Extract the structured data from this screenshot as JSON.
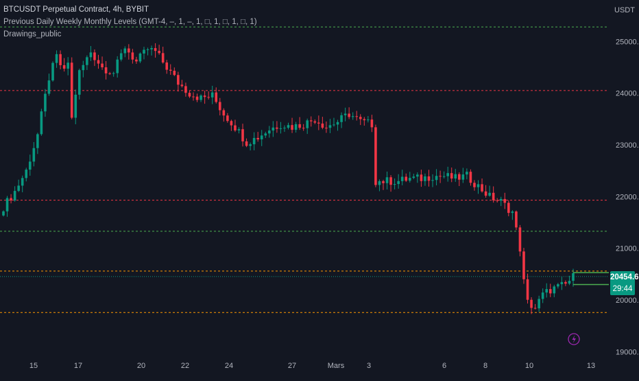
{
  "legend": {
    "title": "BTCUSDT Perpetual Contract, 4h, BYBIT",
    "indicator": "Previous Daily Weekly Monthly Levels (GMT-4, –, 1, –, 1, □, 1, □, 1, □, 1)",
    "drawings": "Drawings_public"
  },
  "axis": {
    "currency": "USDT"
  },
  "price_tag": {
    "last": "20454.6",
    "countdown": "29:44"
  },
  "colors": {
    "up": "#089981",
    "down": "#f23645",
    "monthly": "#4caf50",
    "weekly": "#f23645",
    "daily": "#ff9800",
    "last": "#089981",
    "event": "#9c27b0"
  },
  "chart_data": {
    "type": "candlestick",
    "ylim": [
      18900,
      25800
    ],
    "y_ticks": [
      "25000.0",
      "24000.0",
      "23000.0",
      "22000.0",
      "21000.0",
      "20000.0",
      "19000.0"
    ],
    "y_tick_values": [
      25000,
      24000,
      23000,
      22000,
      21000,
      20000,
      19000
    ],
    "x_tick_labels": [
      "15",
      "17",
      "20",
      "22",
      "24",
      "27",
      "Mars",
      "3",
      "6",
      "8",
      "10",
      "13"
    ],
    "anchors": [
      [
        0,
        21800
      ],
      [
        3,
        22100
      ],
      [
        6,
        22500
      ],
      [
        9,
        23200
      ],
      [
        12,
        24300
      ],
      [
        14,
        24700
      ],
      [
        16,
        24400
      ],
      [
        17,
        24600
      ],
      [
        18,
        23500
      ],
      [
        19,
        24000
      ],
      [
        20,
        24400
      ],
      [
        23,
        24800
      ],
      [
        26,
        24500
      ],
      [
        29,
        24400
      ],
      [
        32,
        24900
      ],
      [
        35,
        24600
      ],
      [
        38,
        24850
      ],
      [
        40,
        24800
      ],
      [
        43,
        24500
      ],
      [
        46,
        24200
      ],
      [
        49,
        24000
      ],
      [
        52,
        23900
      ],
      [
        55,
        23950
      ],
      [
        58,
        23600
      ],
      [
        61,
        23350
      ],
      [
        64,
        23050
      ],
      [
        67,
        23150
      ],
      [
        70,
        23300
      ],
      [
        73,
        23400
      ],
      [
        76,
        23350
      ],
      [
        79,
        23400
      ],
      [
        82,
        23500
      ],
      [
        85,
        23350
      ],
      [
        88,
        23450
      ],
      [
        91,
        23600
      ],
      [
        94,
        23450
      ],
      [
        97,
        23400
      ],
      [
        98,
        22300
      ],
      [
        101,
        22300
      ],
      [
        104,
        22300
      ],
      [
        107,
        22350
      ],
      [
        110,
        22350
      ],
      [
        113,
        22400
      ],
      [
        116,
        22400
      ],
      [
        119,
        22350
      ],
      [
        122,
        22400
      ],
      [
        125,
        22200
      ],
      [
        128,
        22000
      ],
      [
        131,
        21900
      ],
      [
        134,
        21700
      ],
      [
        136,
        21000
      ],
      [
        137,
        20350
      ],
      [
        138,
        19950
      ],
      [
        140,
        19850
      ],
      [
        142,
        20100
      ],
      [
        144,
        20200
      ],
      [
        146,
        20250
      ],
      [
        148,
        20300
      ],
      [
        150,
        20450
      ]
    ],
    "levels": [
      {
        "price": 25280,
        "color": "monthly"
      },
      {
        "price": 21330,
        "color": "monthly"
      },
      {
        "price": 24050,
        "color": "weekly"
      },
      {
        "price": 21930,
        "color": "weekly"
      },
      {
        "price": 20560,
        "color": "daily"
      },
      {
        "price": 19760,
        "color": "daily"
      }
    ],
    "last_price": 20454.6
  }
}
